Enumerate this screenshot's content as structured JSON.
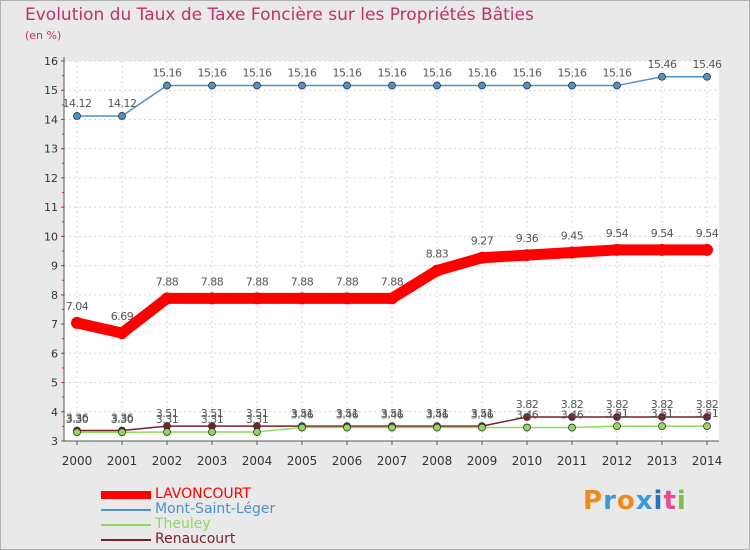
{
  "chart_data": {
    "type": "line",
    "title": "Evolution du Taux de Taxe Foncière sur les Propriétés Bâties",
    "unit_label": "(en %)",
    "ylim": [
      3,
      16
    ],
    "yticks": [
      "3",
      "4",
      "5",
      "6",
      "7",
      "8",
      "9",
      "10",
      "11",
      "12",
      "13",
      "14",
      "15",
      "16"
    ],
    "categories": [
      "2000",
      "2001",
      "2002",
      "2003",
      "2004",
      "2005",
      "2006",
      "2007",
      "2008",
      "2009",
      "2010",
      "2011",
      "2012",
      "2013",
      "2014"
    ],
    "series": [
      {
        "name": "LAVONCOURT",
        "color": "#ff0000",
        "values": [
          7.04,
          6.69,
          7.88,
          7.88,
          7.88,
          7.88,
          7.88,
          7.88,
          8.83,
          9.27,
          9.36,
          9.45,
          9.54,
          9.54,
          9.54
        ],
        "labels": [
          "7.04",
          "6.69",
          "7.88",
          "7.88",
          "7.88",
          "7.88",
          "7.88",
          "7.88",
          "8.83",
          "9.27",
          "9.36",
          "9.45",
          "9.54",
          "9.54",
          "9.54"
        ]
      },
      {
        "name": "Mont-Saint-Léger",
        "color": "#4f91c9",
        "values": [
          14.12,
          14.12,
          15.16,
          15.16,
          15.16,
          15.16,
          15.16,
          15.16,
          15.16,
          15.16,
          15.16,
          15.16,
          15.16,
          15.46,
          15.46
        ],
        "labels": [
          "14.12",
          "14.12",
          "15.16",
          "15.16",
          "15.16",
          "15.16",
          "15.16",
          "15.16",
          "15.16",
          "15.16",
          "15.16",
          "15.16",
          "15.16",
          "15.46",
          "15.46"
        ]
      },
      {
        "name": "Theuley",
        "color": "#8fda5a",
        "values": [
          3.3,
          3.3,
          3.31,
          3.31,
          3.31,
          3.46,
          3.46,
          3.46,
          3.46,
          3.46,
          3.46,
          3.46,
          3.51,
          3.51,
          3.51
        ],
        "labels": [
          "3.30",
          "3.30",
          "3.31",
          "3.31",
          "3.31",
          "3.46",
          "3.46",
          "3.46",
          "3.46",
          "3.46",
          "3.46",
          "3.46",
          "3.51",
          "3.51",
          "3.51"
        ]
      },
      {
        "name": "Renaucourt",
        "color": "#7a1e2c",
        "values": [
          3.36,
          3.36,
          3.51,
          3.51,
          3.51,
          3.51,
          3.51,
          3.51,
          3.51,
          3.51,
          3.82,
          3.82,
          3.82,
          3.82,
          3.82
        ],
        "labels": [
          "3.36",
          "3.36",
          "3.51",
          "3.51",
          "3.51",
          "3.51",
          "3.51",
          "3.51",
          "3.51",
          "3.51",
          "3.82",
          "3.82",
          "3.82",
          "3.82",
          "3.82"
        ]
      }
    ]
  },
  "logo": {
    "text": "Proxiti",
    "colors": [
      "#f08a1c",
      "#3a9ad9",
      "#f08a1c",
      "#3a9ad9",
      "#2c6fbf",
      "#e84a8a",
      "#7ac143"
    ]
  }
}
